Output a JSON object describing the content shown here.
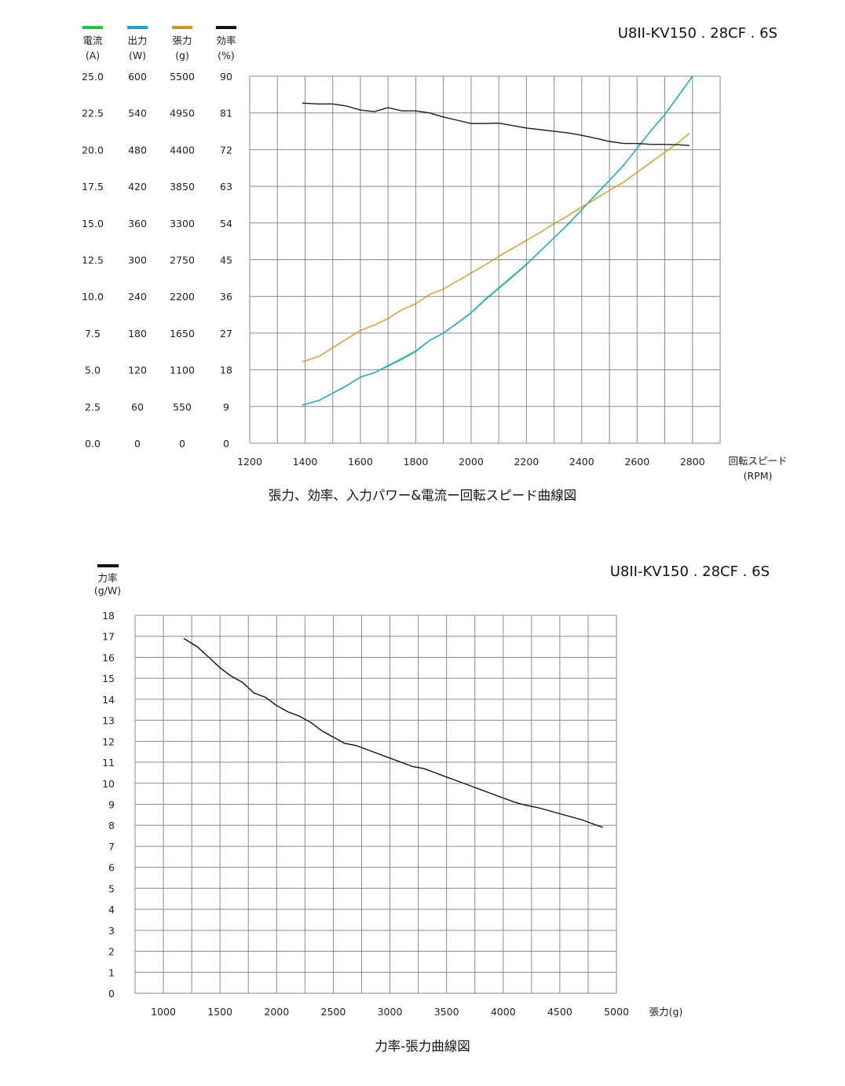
{
  "chart_data": [
    {
      "type": "line",
      "model": "U8II-KV150 . 28CF . 6S",
      "title": "張力、効率、入力パワー&電流ー回転スピード曲線図",
      "xlabel": "回転スピード",
      "xunit": "(RPM)",
      "xlim": [
        1200,
        2900
      ],
      "xticks": [
        "1200",
        "1400",
        "1600",
        "1800",
        "2000",
        "2200",
        "2400",
        "2600",
        "2800"
      ],
      "grid": true,
      "axes": [
        {
          "name": "電流",
          "unit": "(A)",
          "color": "#22c63a",
          "ticks": [
            "25.0",
            "22.5",
            "20.0",
            "17.5",
            "15.0",
            "12.5",
            "10.0",
            "7.5",
            "5.0",
            "2.5",
            "0.0"
          ]
        },
        {
          "name": "出力",
          "unit": "(W)",
          "color": "#1aa0d8",
          "ticks": [
            "600",
            "540",
            "480",
            "420",
            "360",
            "300",
            "240",
            "180",
            "120",
            "60",
            "0"
          ]
        },
        {
          "name": "張力",
          "unit": "(g)",
          "color": "#d4961a",
          "ticks": [
            "5500",
            "4950",
            "4400",
            "3850",
            "3300",
            "2750",
            "2200",
            "1650",
            "1100",
            "550",
            "0"
          ]
        },
        {
          "name": "効率",
          "unit": "(%)",
          "color": "#111111",
          "ticks": [
            "90",
            "81",
            "72",
            "63",
            "54",
            "45",
            "36",
            "27",
            "18",
            "9",
            "0"
          ]
        }
      ],
      "series": [
        {
          "name": "電流",
          "unit": "A",
          "color": "#22c63a",
          "x": [
            1390,
            1450,
            1500,
            1550,
            1600,
            1650,
            1700,
            1750,
            1800,
            1850,
            1900,
            1950,
            2000,
            2050,
            2100,
            2150,
            2200,
            2250,
            2300,
            2350,
            2400,
            2450,
            2500,
            2550,
            2600,
            2650,
            2700,
            2750,
            2800
          ],
          "y": [
            2.6,
            2.9,
            3.4,
            3.9,
            4.5,
            4.8,
            5.3,
            5.8,
            6.3,
            7.0,
            7.5,
            8.2,
            8.9,
            9.8,
            10.6,
            11.4,
            12.2,
            13.1,
            14.0,
            14.9,
            15.9,
            16.9,
            17.9,
            18.9,
            20.1,
            21.3,
            22.4,
            23.7,
            25.0
          ]
        },
        {
          "name": "出力",
          "unit": "W",
          "color": "#1aa0d8",
          "x": [
            1390,
            1450,
            1500,
            1550,
            1600,
            1650,
            1700,
            1750,
            1800,
            1850,
            1900,
            1950,
            2000,
            2050,
            2100,
            2150,
            2200,
            2250,
            2300,
            2350,
            2400,
            2450,
            2500,
            2550,
            2600,
            2650,
            2700,
            2750,
            2800
          ],
          "y": [
            62,
            70,
            82,
            94,
            108,
            115,
            126,
            137,
            150,
            168,
            180,
            196,
            213,
            234,
            253,
            272,
            292,
            314,
            336,
            358,
            382,
            406,
            430,
            454,
            482,
            511,
            537,
            568,
            600
          ]
        },
        {
          "name": "張力",
          "unit": "g",
          "color": "#d4961a",
          "x": [
            1390,
            1450,
            1500,
            1550,
            1600,
            1650,
            1700,
            1750,
            1800,
            1850,
            1900,
            1950,
            2000,
            2050,
            2100,
            2150,
            2200,
            2250,
            2300,
            2350,
            2400,
            2450,
            2500,
            2550,
            2600,
            2650,
            2700,
            2750,
            2790
          ],
          "y": [
            1220,
            1300,
            1430,
            1560,
            1690,
            1770,
            1870,
            2000,
            2090,
            2230,
            2310,
            2430,
            2550,
            2670,
            2800,
            2920,
            3040,
            3160,
            3290,
            3410,
            3540,
            3660,
            3790,
            3910,
            4060,
            4210,
            4360,
            4510,
            4650
          ]
        },
        {
          "name": "効率",
          "unit": "%",
          "color": "#111111",
          "x": [
            1390,
            1450,
            1500,
            1550,
            1600,
            1650,
            1700,
            1750,
            1800,
            1850,
            1900,
            1950,
            2000,
            2050,
            2100,
            2150,
            2200,
            2250,
            2300,
            2350,
            2400,
            2450,
            2500,
            2550,
            2600,
            2650,
            2700,
            2750,
            2790
          ],
          "y": [
            83.4,
            83.2,
            83.2,
            82.7,
            81.7,
            81.3,
            82.3,
            81.5,
            81.5,
            81.0,
            80.0,
            79.2,
            78.4,
            78.4,
            78.5,
            77.9,
            77.3,
            76.9,
            76.5,
            76.1,
            75.5,
            74.8,
            74.0,
            73.5,
            73.5,
            73.3,
            73.3,
            73.2,
            73.0
          ]
        }
      ]
    },
    {
      "type": "line",
      "model": "U8II-KV150 . 28CF . 6S",
      "title": "力率-張力曲線図",
      "xlabel": "張力(g)",
      "ylabel": "力率",
      "yunit": "(g/W)",
      "legend_color": "#111111",
      "xlim": [
        750,
        5000
      ],
      "ylim": [
        0,
        18
      ],
      "xticks": [
        "1000",
        "1500",
        "2000",
        "2500",
        "3000",
        "3500",
        "4000",
        "4500",
        "5000"
      ],
      "yticks": [
        "18",
        "17",
        "16",
        "15",
        "14",
        "13",
        "12",
        "11",
        "10",
        "9",
        "8",
        "7",
        "6",
        "5",
        "4",
        "3",
        "2",
        "1",
        "0"
      ],
      "grid": true,
      "series": [
        {
          "name": "力率",
          "color": "#111111",
          "x": [
            1180,
            1300,
            1400,
            1500,
            1600,
            1700,
            1800,
            1900,
            2000,
            2100,
            2200,
            2300,
            2400,
            2500,
            2600,
            2700,
            2800,
            2900,
            3000,
            3100,
            3200,
            3300,
            3400,
            3500,
            3600,
            3700,
            3800,
            3900,
            4000,
            4100,
            4200,
            4300,
            4400,
            4500,
            4600,
            4700,
            4800,
            4880
          ],
          "y": [
            16.9,
            16.5,
            16.0,
            15.5,
            15.1,
            14.8,
            14.3,
            14.1,
            13.7,
            13.4,
            13.2,
            12.9,
            12.5,
            12.2,
            11.9,
            11.8,
            11.6,
            11.4,
            11.2,
            11.0,
            10.8,
            10.7,
            10.5,
            10.3,
            10.1,
            9.9,
            9.7,
            9.5,
            9.3,
            9.1,
            8.95,
            8.85,
            8.7,
            8.55,
            8.4,
            8.25,
            8.05,
            7.9
          ]
        }
      ]
    }
  ]
}
